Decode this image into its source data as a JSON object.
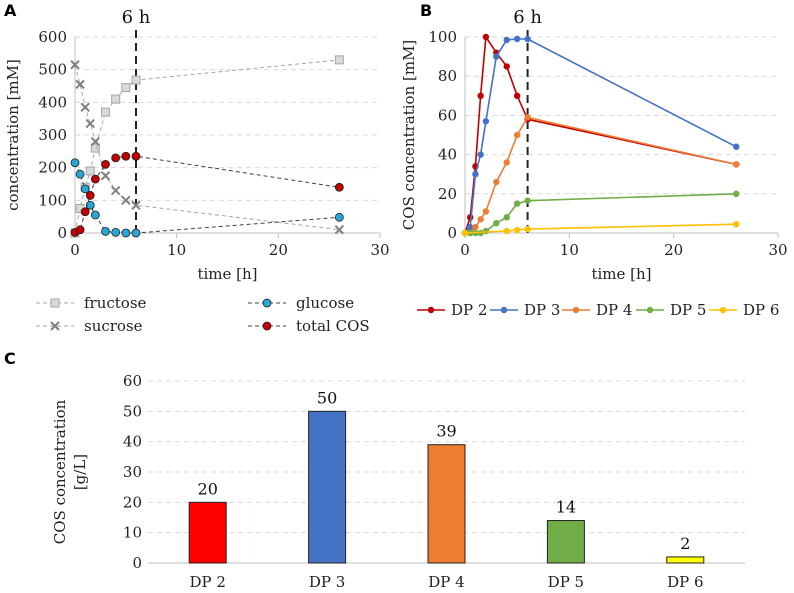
{
  "chart_data": [
    {
      "panel": "A",
      "type": "line",
      "xlabel": "time [h]",
      "ylabel": "concentration [mM]",
      "xlim": [
        0,
        30
      ],
      "ylim": [
        0,
        600
      ],
      "xticks": [
        "0",
        "10",
        "20",
        "30"
      ],
      "yticks": [
        "0",
        "100",
        "200",
        "300",
        "400",
        "500",
        "600"
      ],
      "annotation": "6 h",
      "annotation_x": 6,
      "series": [
        {
          "name": "fructose",
          "color": "#bfbfbf",
          "marker": "square",
          "x": [
            0,
            0.5,
            1,
            1.5,
            2,
            3,
            4,
            5,
            6,
            26
          ],
          "y": [
            0,
            75,
            140,
            190,
            260,
            370,
            410,
            445,
            468,
            530
          ]
        },
        {
          "name": "sucrose",
          "color": "#808080",
          "marker": "cross",
          "x": [
            0,
            0.5,
            1,
            1.5,
            2,
            3,
            4,
            5,
            6,
            26
          ],
          "y": [
            515,
            455,
            385,
            335,
            280,
            175,
            130,
            100,
            85,
            10
          ]
        },
        {
          "name": "glucose",
          "color": "#29a6d8",
          "marker": "circle",
          "x": [
            0,
            0.5,
            1,
            1.5,
            2,
            3,
            4,
            5,
            6,
            26
          ],
          "y": [
            215,
            180,
            135,
            85,
            55,
            5,
            2,
            0,
            0,
            48
          ]
        },
        {
          "name": "total COS",
          "color": "#c00000",
          "marker": "circle",
          "x": [
            0,
            0.5,
            1,
            1.5,
            2,
            3,
            4,
            5,
            6,
            26
          ],
          "y": [
            2,
            10,
            65,
            115,
            165,
            210,
            230,
            235,
            235,
            140
          ]
        }
      ]
    },
    {
      "panel": "B",
      "type": "line",
      "xlabel": "time [h]",
      "ylabel": "COS concentration [mM]",
      "xlim": [
        0,
        30
      ],
      "ylim": [
        0,
        100
      ],
      "xticks": [
        "0",
        "10",
        "20",
        "30"
      ],
      "yticks": [
        "0",
        "20",
        "40",
        "60",
        "80",
        "100"
      ],
      "annotation": "6 h",
      "annotation_x": 6,
      "series": [
        {
          "name": "DP 2",
          "color": "#c00000",
          "x": [
            0,
            0.5,
            1,
            1.5,
            2,
            3,
            4,
            5,
            6,
            26
          ],
          "y": [
            0,
            8,
            34,
            70,
            100,
            92,
            85,
            70,
            58,
            35
          ]
        },
        {
          "name": "DP 3",
          "color": "#4472c4",
          "x": [
            0,
            0.5,
            1,
            1.5,
            2,
            3,
            4,
            5,
            6,
            26
          ],
          "y": [
            0,
            3,
            30,
            40,
            57,
            90,
            98.5,
            99,
            99,
            44
          ]
        },
        {
          "name": "DP 4",
          "color": "#ed7d31",
          "x": [
            0,
            0.5,
            1,
            1.5,
            2,
            3,
            4,
            5,
            6,
            26
          ],
          "y": [
            0,
            0,
            3,
            7,
            11,
            26,
            36,
            50,
            59,
            35
          ]
        },
        {
          "name": "DP 5",
          "color": "#70ad47",
          "x": [
            0,
            0.5,
            1,
            1.5,
            2,
            3,
            4,
            5,
            6,
            26
          ],
          "y": [
            0,
            0,
            0,
            0,
            1,
            5,
            8,
            15,
            16.5,
            20
          ]
        },
        {
          "name": "DP 6",
          "color": "#ffc000",
          "x": [
            0,
            4,
            5,
            6,
            26
          ],
          "y": [
            0,
            1,
            1.5,
            2,
            4.5
          ]
        }
      ]
    },
    {
      "panel": "C",
      "type": "bar",
      "ylabel_line1": "COS concentration",
      "ylabel_line2": "[g/L]",
      "ylim": [
        0,
        60
      ],
      "yticks": [
        "0",
        "10",
        "20",
        "30",
        "40",
        "50",
        "60"
      ],
      "categories": [
        "DP 2",
        "DP 3",
        "DP 4",
        "DP 5",
        "DP 6"
      ],
      "values": [
        20,
        50,
        39,
        14,
        2
      ],
      "data_labels": [
        "20",
        "50",
        "39",
        "14",
        "2"
      ],
      "colors": [
        "#ff0000",
        "#4472c4",
        "#ed7d31",
        "#70ad47",
        "#ffff00"
      ]
    }
  ]
}
